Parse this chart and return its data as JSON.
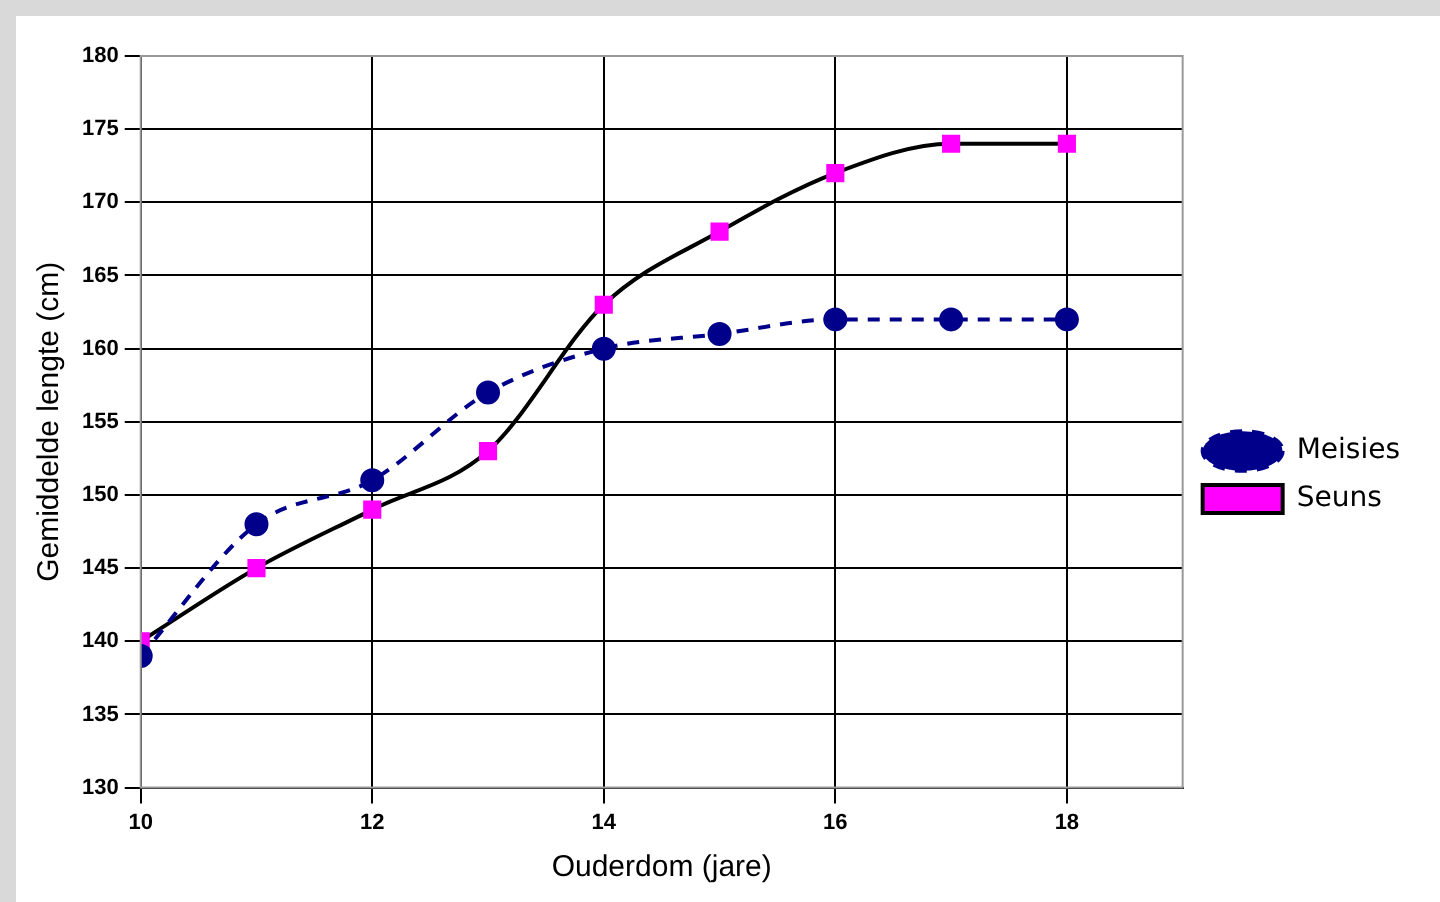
{
  "chart_data": {
    "type": "line",
    "xlabel": "Ouderdom (jare)",
    "ylabel": "Gemiddelde lengte (cm)",
    "x": [
      10,
      11,
      12,
      13,
      14,
      15,
      16,
      17,
      18
    ],
    "series": [
      {
        "name": "Meisies",
        "color": "#00008b",
        "values": [
          139,
          148,
          151,
          157,
          160,
          161,
          162,
          162,
          162
        ],
        "marker": "circle",
        "line_style": "dashed"
      },
      {
        "name": "Seuns",
        "color": "#000000",
        "colors": [
          "#ff00ff",
          "#ff00ff",
          "#ff00ff",
          "#ff00ff",
          "#ff00ff",
          "#ff00ff",
          "#ff00ff",
          "#ff00ff",
          "#ff00ff"
        ],
        "values": [
          140,
          145,
          149,
          153,
          163,
          168,
          172,
          174,
          174
        ],
        "marker": "square",
        "line_style": "solid"
      }
    ],
    "xlim": [
      10,
      19
    ],
    "xticks": [
      10,
      12,
      14,
      16,
      18
    ],
    "ylim": [
      130,
      180
    ],
    "yticks": [
      130,
      135,
      140,
      145,
      150,
      155,
      160,
      165,
      170,
      175,
      180
    ],
    "grid": true,
    "legend": "right"
  }
}
